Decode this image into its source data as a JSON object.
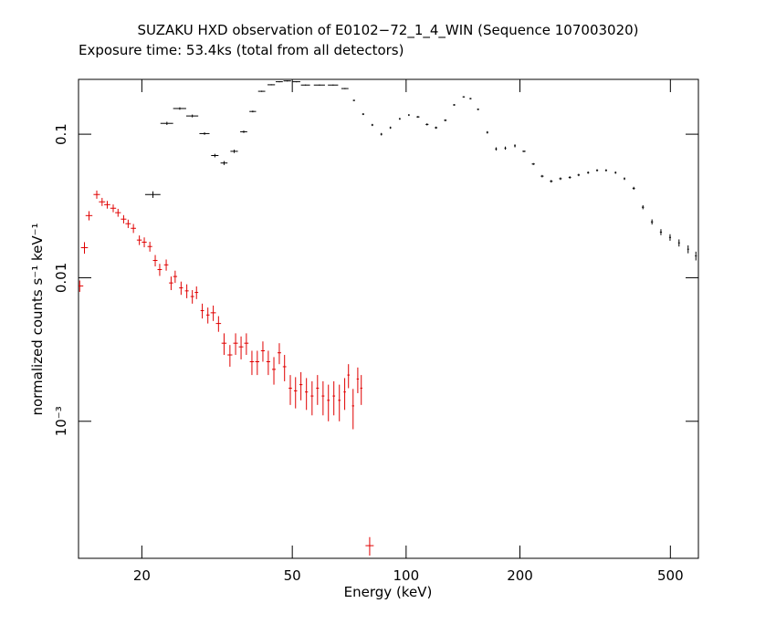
{
  "chart_data": {
    "type": "errorbar",
    "title": "SUZAKU HXD observation of E0102−72_1_4_WIN (Sequence 107003020)",
    "subtitle": "Exposure time: 53.4ks (total from all detectors)",
    "x_label": "Energy (keV)",
    "y_label": "normalized counts s⁻¹ keV⁻¹",
    "xscale": "log",
    "yscale": "log",
    "xlim": [
      13.6,
      593
    ],
    "ylim": [
      0.000111,
      0.241
    ],
    "xticks": [
      20,
      50,
      100,
      200,
      500
    ],
    "yticks": [
      0.1,
      0.01,
      {
        "value": 0.001,
        "label": "10⁻³"
      }
    ],
    "series": [
      {
        "color": "#000000",
        "x": [
          21.4,
          23.3,
          25.2,
          27.2,
          29.3,
          31.2,
          33.0,
          35.1,
          37.2,
          39.3,
          41.5,
          44.0,
          46.2,
          48.5,
          51.3,
          54.2,
          59.0,
          64.1,
          68.9,
          72.8,
          77.0,
          81.4,
          86.0,
          90.9,
          96.2,
          101.7,
          107.5,
          113.6,
          120,
          127,
          134,
          142,
          148,
          155,
          164,
          173,
          183,
          194,
          205,
          217,
          229,
          242,
          256,
          271,
          286,
          303,
          320,
          338,
          358,
          378,
          400,
          423,
          447,
          472,
          499,
          527,
          557,
          584
        ],
        "values": [
          0.038,
          0.119,
          0.151,
          0.134,
          0.101,
          0.071,
          0.063,
          0.076,
          0.104,
          0.144,
          0.199,
          0.221,
          0.232,
          0.235,
          0.232,
          0.22,
          0.22,
          0.22,
          0.208,
          0.172,
          0.138,
          0.116,
          0.1,
          0.111,
          0.128,
          0.136,
          0.132,
          0.117,
          0.111,
          0.125,
          0.16,
          0.182,
          0.177,
          0.149,
          0.103,
          0.079,
          0.08,
          0.083,
          0.076,
          0.062,
          0.051,
          0.047,
          0.049,
          0.05,
          0.052,
          0.054,
          0.056,
          0.056,
          0.054,
          0.049,
          0.042,
          0.031,
          0.0245,
          0.0208,
          0.0191,
          0.0175,
          0.0158,
          0.0142
        ],
        "xerr": [
          1.0,
          0.9,
          1.0,
          1.0,
          0.9,
          0.7,
          0.7,
          0.8,
          0.8,
          0.8,
          0.9,
          1.0,
          1.0,
          1.1,
          1.2,
          1.5,
          2.0,
          2.0,
          1.5,
          0.5,
          0.5,
          0.5,
          0.5,
          0.5,
          0.5,
          0.5,
          1,
          1,
          1,
          1,
          1,
          1,
          1,
          1,
          1,
          1,
          1,
          1,
          2,
          2,
          2,
          2,
          2,
          2,
          2,
          2,
          2,
          2,
          2,
          2,
          3,
          3,
          3,
          3,
          3,
          3,
          3,
          3
        ],
        "yerr": [
          0.002,
          0.003,
          0.003,
          0.003,
          0.002,
          0.002,
          0.002,
          0.002,
          0.002,
          0.002,
          0.002,
          0.002,
          0.002,
          0.002,
          0.002,
          0.002,
          0.002,
          0.002,
          0.002,
          0.002,
          0.002,
          0.002,
          0.002,
          0.002,
          0.002,
          0.002,
          0.002,
          0.002,
          0.002,
          0.002,
          0.002,
          0.002,
          0.002,
          0.002,
          0.002,
          0.002,
          0.002,
          0.002,
          0.001,
          0.001,
          0.001,
          0.001,
          0.001,
          0.001,
          0.001,
          0.001,
          0.001,
          0.001,
          0.001,
          0.001,
          0.001,
          0.001,
          0.001,
          0.001,
          0.001,
          0.001,
          0.001,
          0.001
        ]
      },
      {
        "color": "#e00000",
        "x": [
          13.7,
          14.1,
          14.5,
          15.2,
          15.7,
          16.2,
          16.8,
          17.3,
          17.9,
          18.4,
          19.0,
          19.7,
          20.3,
          21.0,
          21.7,
          22.3,
          23.2,
          23.9,
          24.5,
          25.4,
          26.3,
          27.2,
          27.9,
          28.9,
          29.9,
          30.9,
          31.9,
          33.0,
          34.2,
          35.4,
          36.6,
          37.8,
          39.1,
          40.4,
          41.8,
          43.2,
          44.7,
          46.2,
          47.7,
          49.4,
          51.0,
          52.7,
          54.5,
          56.4,
          58.3,
          60.3,
          62.3,
          64.4,
          66.6,
          68.8,
          70.4,
          72.4,
          74.5,
          76.1,
          80.1
        ],
        "values": [
          0.00877,
          0.0162,
          0.0271,
          0.038,
          0.0338,
          0.0323,
          0.0305,
          0.0284,
          0.0256,
          0.0238,
          0.0221,
          0.0183,
          0.0177,
          0.0165,
          0.0132,
          0.0114,
          0.0123,
          0.0092,
          0.0102,
          0.0085,
          0.0081,
          0.0074,
          0.0079,
          0.0059,
          0.0055,
          0.0057,
          0.0048,
          0.0035,
          0.0029,
          0.0035,
          0.0033,
          0.0035,
          0.0026,
          0.0026,
          0.0031,
          0.0026,
          0.0023,
          0.003,
          0.0024,
          0.0017,
          0.00163,
          0.0018,
          0.0016,
          0.0015,
          0.0017,
          0.0015,
          0.0014,
          0.0015,
          0.0014,
          0.0016,
          0.0021,
          0.00128,
          0.00197,
          0.0017,
          0.000136
        ],
        "xerr": [
          0.3,
          0.3,
          0.3,
          0.3,
          0.3,
          0.3,
          0.3,
          0.3,
          0.3,
          0.3,
          0.3,
          0.3,
          0.3,
          0.3,
          0.3,
          0.3,
          0.3,
          0.3,
          0.3,
          0.3,
          0.3,
          0.3,
          0.3,
          0.3,
          0.3,
          0.5,
          0.5,
          0.5,
          0.5,
          0.5,
          0.5,
          0.5,
          0.5,
          0.5,
          0.5,
          0.5,
          0.5,
          0.5,
          0.5,
          0.5,
          0.5,
          0.5,
          0.5,
          0.5,
          0.5,
          0.5,
          0.5,
          0.5,
          0.5,
          0.5,
          0.5,
          0.5,
          0.5,
          0.5,
          2.0
        ],
        "yerr": [
          0.0008,
          0.0015,
          0.002,
          0.0025,
          0.0022,
          0.002,
          0.0019,
          0.0018,
          0.0017,
          0.0016,
          0.0016,
          0.0014,
          0.0014,
          0.0013,
          0.0012,
          0.0011,
          0.0011,
          0.001,
          0.001,
          0.0009,
          0.0009,
          0.0008,
          0.0008,
          0.0007,
          0.0007,
          0.0007,
          0.0006,
          0.0006,
          0.0005,
          0.0006,
          0.0006,
          0.0006,
          0.0005,
          0.0005,
          0.0005,
          0.0005,
          0.0005,
          0.0005,
          0.0005,
          0.0004,
          0.0004,
          0.0004,
          0.0004,
          0.0004,
          0.0004,
          0.0004,
          0.0004,
          0.0004,
          0.0004,
          0.0004,
          0.0004,
          0.0004,
          0.0004,
          0.0004,
          2e-05
        ]
      }
    ]
  }
}
